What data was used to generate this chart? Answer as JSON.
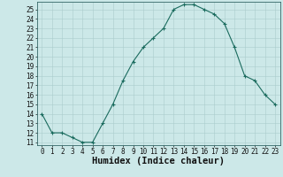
{
  "x": [
    0,
    1,
    2,
    3,
    4,
    5,
    6,
    7,
    8,
    9,
    10,
    11,
    12,
    13,
    14,
    15,
    16,
    17,
    18,
    19,
    20,
    21,
    22,
    23
  ],
  "y": [
    14.0,
    12.0,
    12.0,
    11.5,
    11.0,
    11.0,
    13.0,
    15.0,
    17.5,
    19.5,
    21.0,
    22.0,
    23.0,
    25.0,
    25.5,
    25.5,
    25.0,
    24.5,
    23.5,
    21.0,
    18.0,
    17.5,
    16.0,
    15.0
  ],
  "line_color": "#1a6b5e",
  "marker_color": "#1a6b5e",
  "bg_color": "#cce8e8",
  "grid_color": "#aacccc",
  "xlabel": "Humidex (Indice chaleur)",
  "xlim": [
    -0.5,
    23.5
  ],
  "ylim": [
    11,
    25.5
  ],
  "yticks": [
    11,
    12,
    13,
    14,
    15,
    16,
    17,
    18,
    19,
    20,
    21,
    22,
    23,
    24,
    25
  ],
  "xticks": [
    0,
    1,
    2,
    3,
    4,
    5,
    6,
    7,
    8,
    9,
    10,
    11,
    12,
    13,
    14,
    15,
    16,
    17,
    18,
    19,
    20,
    21,
    22,
    23
  ],
  "tick_fontsize": 5.5,
  "label_fontsize": 7.5
}
